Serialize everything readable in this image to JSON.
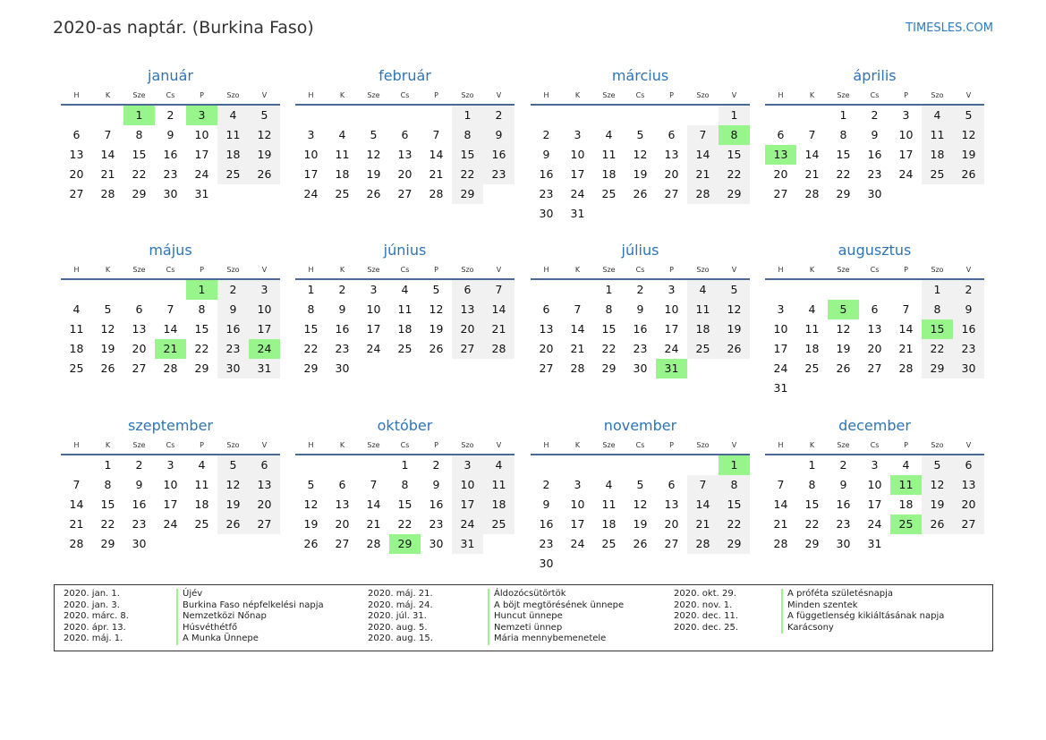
{
  "header": {
    "title": "2020-as naptár. (Burkina Faso)",
    "brand": "TIMESLES.COM"
  },
  "year": 2020,
  "weekdays": [
    "H",
    "K",
    "Sze",
    "Cs",
    "P",
    "Szo",
    "V"
  ],
  "months": [
    "január",
    "február",
    "március",
    "április",
    "május",
    "június",
    "július",
    "augusztus",
    "szeptember",
    "október",
    "november",
    "december"
  ],
  "holiday_color": "#98f58c",
  "weekend_color": "#f1f1f1",
  "holidays": [
    {
      "date": "2020-01-01",
      "label": "2020. jan. 1.",
      "name": "Újév"
    },
    {
      "date": "2020-01-03",
      "label": "2020. jan. 3.",
      "name": "Burkina Faso népfelkelési napja"
    },
    {
      "date": "2020-03-08",
      "label": "2020. márc. 8.",
      "name": "Nemzetközi Nőnap"
    },
    {
      "date": "2020-04-13",
      "label": "2020. ápr. 13.",
      "name": "Húsvéthétfő"
    },
    {
      "date": "2020-05-01",
      "label": "2020. máj. 1.",
      "name": "A Munka Ünnepe"
    },
    {
      "date": "2020-05-21",
      "label": "2020. máj. 21.",
      "name": "Áldozócsütörtök"
    },
    {
      "date": "2020-05-24",
      "label": "2020. máj. 24.",
      "name": "A böjt megtörésének ünnepe"
    },
    {
      "date": "2020-07-31",
      "label": "2020. júl. 31.",
      "name": "Huncut ünnepe"
    },
    {
      "date": "2020-08-05",
      "label": "2020. aug. 5.",
      "name": "Nemzeti ünnep"
    },
    {
      "date": "2020-08-15",
      "label": "2020. aug. 15.",
      "name": "Mária mennybemenetele"
    },
    {
      "date": "2020-10-29",
      "label": "2020. okt. 29.",
      "name": "A próféta születésnapja"
    },
    {
      "date": "2020-11-01",
      "label": "2020. nov. 1.",
      "name": "Minden szentek"
    },
    {
      "date": "2020-12-11",
      "label": "2020. dec. 11.",
      "name": "A függetlenség kikiáltásának napja"
    },
    {
      "date": "2020-12-25",
      "label": "2020. dec. 25.",
      "name": "Karácsony"
    }
  ]
}
